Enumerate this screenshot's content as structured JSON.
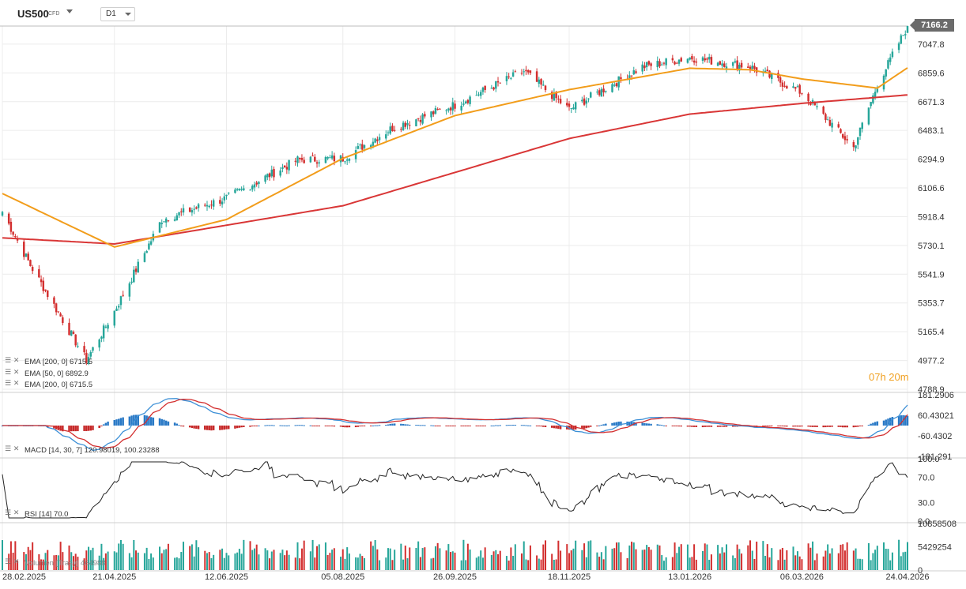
{
  "header": {
    "symbol": "US500",
    "symbol_tag": "CFD",
    "timeframe": "D1"
  },
  "main": {
    "current_price": "7166.2",
    "countdown": "07h 20m",
    "y_ticks": [
      "7047.8",
      "6859.6",
      "6671.3",
      "6483.1",
      "6294.9",
      "6106.6",
      "5918.4",
      "5730.1",
      "5541.9",
      "5353.7",
      "5165.4",
      "4977.2",
      "4788.9"
    ],
    "price_axis_range": [
      4788.9,
      7166.2
    ],
    "indicators": [
      {
        "label": "EMA [200, 0] 6715.5"
      },
      {
        "label": "EMA [50, 0] 6892.9"
      },
      {
        "label": "EMA [200, 0] 6715.5"
      }
    ]
  },
  "macd": {
    "label": "MACD [14, 30, 7] 120.98019, 100.23288",
    "y_ticks": [
      "181.2906",
      "60.43021",
      "-60.4302",
      "-181.291"
    ]
  },
  "rsi": {
    "label": "RSI [14] 70.0",
    "y_ticks": [
      "100.0",
      "70.0",
      "30.0",
      "0.0"
    ]
  },
  "volume": {
    "label": "Volumen [Trasy] 464988",
    "y_ticks": [
      "10858508",
      "5429254",
      "0"
    ]
  },
  "x_axis": {
    "ticks": [
      "28.02.2025",
      "21.04.2025",
      "12.06.2025",
      "05.08.2025",
      "26.09.2025",
      "18.11.2025",
      "13.01.2026",
      "06.03.2026",
      "24.04.2026"
    ]
  },
  "colors": {
    "up": "#26a69a",
    "down": "#d32f2f",
    "ema50": "#f29d1b",
    "ema200": "#d93636",
    "macd_line": "#3b8fd6",
    "signal_line": "#d32f2f",
    "hist_pos": "#2979c6",
    "hist_neg": "#c62828",
    "rsi": "#222222",
    "countdown": "#f0a020"
  },
  "chart_data": {
    "type": "candlestick",
    "title": "US500 D1",
    "x_range": [
      "2025-02-28",
      "2026-04-24"
    ],
    "ylim": [
      4788.9,
      7166.2
    ],
    "last_close": 7166.2,
    "close_keypoints": [
      {
        "date": "2025-02-28",
        "close": 5950
      },
      {
        "date": "2025-03-13",
        "close": 5600
      },
      {
        "date": "2025-04-08",
        "close": 4980
      },
      {
        "date": "2025-04-21",
        "close": 5300
      },
      {
        "date": "2025-05-13",
        "close": 5900
      },
      {
        "date": "2025-06-12",
        "close": 6040
      },
      {
        "date": "2025-07-15",
        "close": 6290
      },
      {
        "date": "2025-08-05",
        "close": 6300
      },
      {
        "date": "2025-08-28",
        "close": 6500
      },
      {
        "date": "2025-09-26",
        "close": 6650
      },
      {
        "date": "2025-10-28",
        "close": 6870
      },
      {
        "date": "2025-11-18",
        "close": 6620
      },
      {
        "date": "2025-12-22",
        "close": 6900
      },
      {
        "date": "2026-01-13",
        "close": 6960
      },
      {
        "date": "2026-02-10",
        "close": 6900
      },
      {
        "date": "2026-03-06",
        "close": 6730
      },
      {
        "date": "2026-03-30",
        "close": 6370
      },
      {
        "date": "2026-04-10",
        "close": 6780
      },
      {
        "date": "2026-04-24",
        "close": 7166.2
      }
    ],
    "series": [
      {
        "name": "EMA [200, 0] 6715.5",
        "keypoints": [
          {
            "date": "2025-02-28",
            "value": 5780
          },
          {
            "date": "2025-04-21",
            "value": 5740
          },
          {
            "date": "2025-08-05",
            "value": 5990
          },
          {
            "date": "2025-11-18",
            "value": 6430
          },
          {
            "date": "2026-01-13",
            "value": 6590
          },
          {
            "date": "2026-03-06",
            "value": 6660
          },
          {
            "date": "2026-04-24",
            "value": 6715.5
          }
        ]
      },
      {
        "name": "EMA [50, 0] 6892.9",
        "keypoints": [
          {
            "date": "2025-02-28",
            "value": 6070
          },
          {
            "date": "2025-04-21",
            "value": 5720
          },
          {
            "date": "2025-06-12",
            "value": 5900
          },
          {
            "date": "2025-08-05",
            "value": 6300
          },
          {
            "date": "2025-09-26",
            "value": 6580
          },
          {
            "date": "2025-11-18",
            "value": 6750
          },
          {
            "date": "2026-01-13",
            "value": 6890
          },
          {
            "date": "2026-02-10",
            "value": 6880
          },
          {
            "date": "2026-03-06",
            "value": 6820
          },
          {
            "date": "2026-04-10",
            "value": 6760
          },
          {
            "date": "2026-04-24",
            "value": 6892.9
          }
        ]
      }
    ],
    "macd": {
      "macd": 120.98019,
      "signal": 100.23288,
      "ylim": [
        -181.291,
        181.2906
      ]
    },
    "rsi": {
      "value": 70.0,
      "ylim": [
        0,
        100
      ]
    },
    "volume": {
      "last": 464988,
      "ylim": [
        0,
        10858508
      ]
    }
  }
}
